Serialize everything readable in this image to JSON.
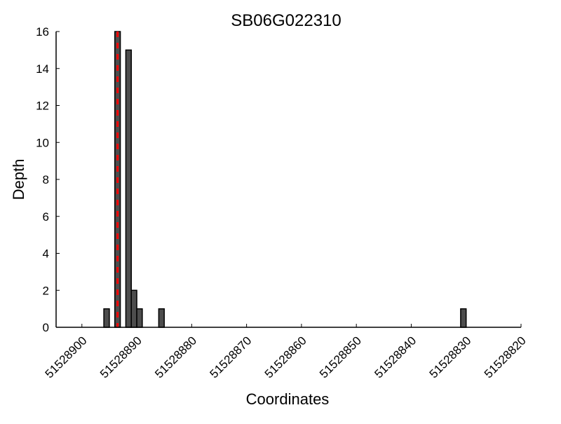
{
  "chart_data": {
    "type": "bar",
    "title": "SB06G022310",
    "xlabel": "Coordinates",
    "ylabel": "Depth",
    "xlim": [
      51528904.7,
      51528820
    ],
    "ylim": [
      0,
      16
    ],
    "x_reversed": true,
    "xticks": [
      51528900,
      51528890,
      51528880,
      51528870,
      51528860,
      51528850,
      51528840,
      51528830,
      51528820
    ],
    "yticks": [
      0,
      2,
      4,
      6,
      8,
      10,
      12,
      14,
      16
    ],
    "x": [
      51528895.5,
      51528893.5,
      51528891.5,
      51528890.5,
      51528889.5,
      51528885.5,
      51528830.5
    ],
    "values": [
      1,
      16,
      15,
      2,
      1,
      1,
      1
    ],
    "bar_color": "#4d4d4d",
    "marker_line": {
      "x": 51528893.5,
      "color": "#ff0000",
      "style": "dashed"
    },
    "grid": false
  }
}
